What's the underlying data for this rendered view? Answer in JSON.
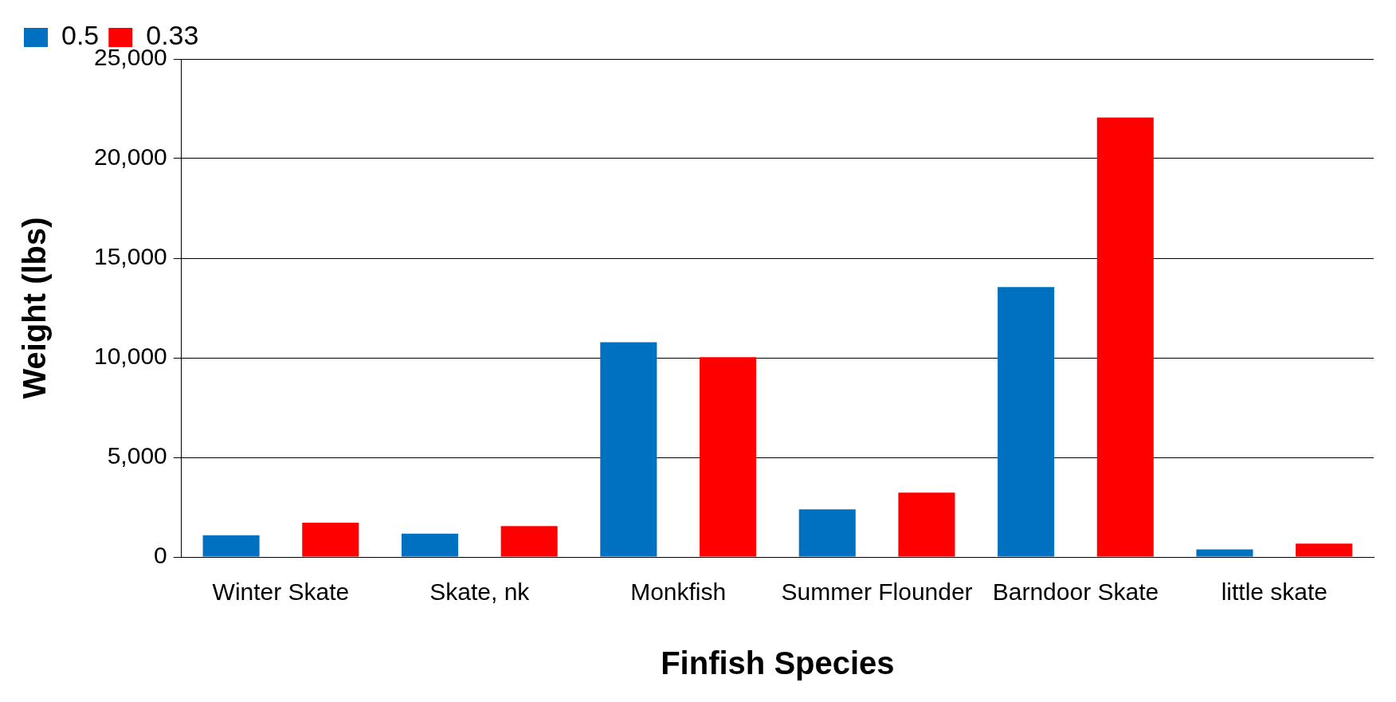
{
  "chart_data": {
    "type": "bar",
    "xlabel": "Finfish Species",
    "ylabel": "Weight (lbs)",
    "categories": [
      "Winter Skate",
      "Skate, nk",
      "Monkfish",
      "Summer Flounder",
      "Barndoor Skate",
      "little skate"
    ],
    "series": [
      {
        "name": "0.5",
        "color": "#0070c0",
        "values": [
          1090,
          1170,
          10780,
          2390,
          13550,
          380
        ]
      },
      {
        "name": "0.33",
        "color": "#ff0000",
        "values": [
          1720,
          1550,
          10030,
          3230,
          22060,
          670
        ]
      }
    ],
    "ylim": [
      0,
      25000
    ],
    "yticks": [
      {
        "value": 0,
        "label": "0"
      },
      {
        "value": 5000,
        "label": "5,000"
      },
      {
        "value": 10000,
        "label": "10,000"
      },
      {
        "value": 15000,
        "label": "15,000"
      },
      {
        "value": 20000,
        "label": "20,000"
      },
      {
        "value": 25000,
        "label": "25,000"
      }
    ],
    "grid": "y",
    "legend": "top left"
  }
}
